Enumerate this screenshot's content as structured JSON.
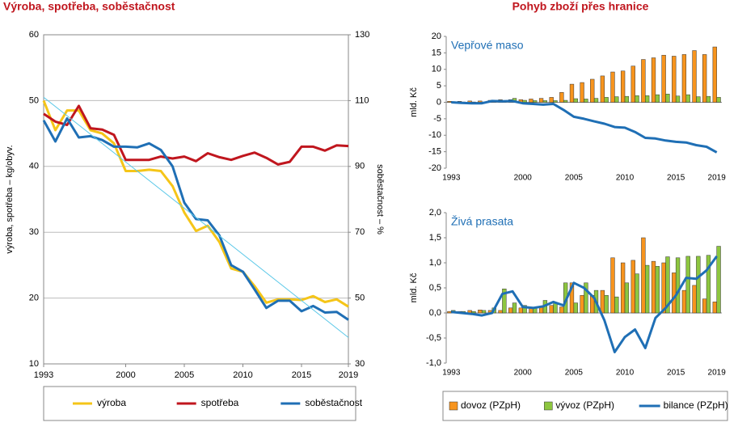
{
  "section_title": "Pohyb zboží přes hranice",
  "chart_data": [
    {
      "type": "line",
      "title": "Výroba, spotřeba, soběstačnost",
      "ylabel": "výroba, spotřeba – kg/obyv.",
      "y2label": "soběstačnost – %",
      "x": [
        1993,
        1994,
        1995,
        1996,
        1997,
        1998,
        1999,
        2000,
        2001,
        2002,
        2003,
        2004,
        2005,
        2006,
        2007,
        2008,
        2009,
        2010,
        2011,
        2012,
        2013,
        2014,
        2015,
        2016,
        2017,
        2018,
        2019
      ],
      "xlim": [
        1993,
        2019
      ],
      "xticks": [
        1993,
        2000,
        2005,
        2010,
        2015,
        2019
      ],
      "ylim": [
        10,
        60
      ],
      "yticks": [
        10,
        20,
        30,
        40,
        50,
        60
      ],
      "y2lim": [
        30,
        130
      ],
      "y2ticks": [
        30,
        50,
        70,
        90,
        110,
        130
      ],
      "grid": true,
      "legend": "bottom",
      "series": [
        {
          "name": "výroba",
          "color": "#f5c518",
          "values": [
            50,
            45.5,
            48.5,
            48.5,
            45.5,
            45,
            43.5,
            39.3,
            39.3,
            39.5,
            39.3,
            37,
            33,
            30.2,
            31,
            28.5,
            24.5,
            24,
            21.8,
            19.3,
            19.8,
            19.8,
            19.7,
            20.3,
            19.4,
            19.8,
            18.7
          ]
        },
        {
          "name": "spotřeba",
          "color": "#c0161e",
          "values": [
            48,
            46.8,
            46.3,
            49.2,
            45.8,
            45.6,
            44.8,
            41,
            41,
            41,
            41.5,
            41.2,
            41.5,
            40.8,
            42,
            41.4,
            41,
            41.6,
            42.1,
            41.3,
            40.3,
            40.7,
            43,
            43,
            42.4,
            43.2,
            43.1
          ]
        },
        {
          "name": "soběstačnost",
          "color": "#1f6fb5",
          "axis": "y2",
          "values": [
            104,
            97.6,
            104.6,
            98.8,
            99.2,
            98,
            96,
            96,
            95.8,
            97,
            95,
            90,
            79,
            74,
            73.6,
            69,
            60,
            58,
            52.6,
            47,
            49.2,
            49.2,
            46,
            47.6,
            45.6,
            45.8,
            43.4
          ]
        },
        {
          "color": "#5bc8e8",
          "x": [
            1993,
            2019
          ],
          "values": [
            50.5,
            14
          ]
        }
      ]
    },
    {
      "type": "bar",
      "title": "Vepřové maso",
      "ylabel": "mld. Kč",
      "categories": [
        "1993",
        null,
        null,
        null,
        null,
        null,
        null,
        "2000",
        null,
        null,
        null,
        null,
        "2005",
        null,
        null,
        null,
        null,
        "2010",
        null,
        null,
        null,
        null,
        "2015",
        null,
        null,
        null,
        "2019"
      ],
      "ylim": [
        -20,
        20
      ],
      "yticks": [
        -20,
        -15,
        -10,
        -5,
        0,
        5,
        10,
        15,
        20
      ],
      "grid": false,
      "series": [
        {
          "color": "#f7941d",
          "values": [
            0.3,
            0.3,
            0.4,
            0.4,
            0.6,
            0.8,
            0.8,
            0.8,
            1,
            1.2,
            1.5,
            3,
            5.5,
            6,
            7,
            8,
            9.2,
            9.5,
            11,
            13,
            13.5,
            14.3,
            14,
            14.5,
            15.7,
            14.5,
            16.8
          ]
        },
        {
          "color": "#8dc63f",
          "values": [
            0.2,
            0.1,
            0.1,
            0.1,
            0.2,
            0.5,
            1.2,
            0.6,
            0.5,
            0.5,
            0.5,
            0.6,
            1.1,
            1,
            1.2,
            1.5,
            1.7,
            1.8,
            2,
            2,
            2.3,
            2.5,
            1.9,
            2.3,
            1.7,
            1.8,
            1.5
          ]
        },
        {
          "color": "#1f6fb5",
          "type": "line",
          "values": [
            0,
            -0.2,
            -0.3,
            -0.3,
            0.4,
            0.3,
            0.4,
            -0.3,
            -0.5,
            -0.7,
            -0.5,
            -2.3,
            -4.4,
            -5,
            -5.8,
            -6.5,
            -7.5,
            -7.7,
            -9,
            -10.8,
            -11,
            -11.6,
            -12,
            -12.2,
            -13,
            -13.5,
            -15.2
          ]
        }
      ]
    },
    {
      "type": "bar",
      "title": "Živá prasata",
      "ylabel": "mld. Kč",
      "categories": [
        "1993",
        null,
        null,
        null,
        null,
        null,
        null,
        "2000",
        null,
        null,
        null,
        null,
        "2005",
        null,
        null,
        null,
        null,
        "2010",
        null,
        null,
        null,
        null,
        "2015",
        null,
        null,
        null,
        "2019"
      ],
      "ylim": [
        -1,
        2
      ],
      "yticks": [
        {
          "value": -1,
          "label": "-1,0"
        },
        {
          "value": -0.5,
          "label": "-0,5"
        },
        {
          "value": 0,
          "label": "0,0"
        },
        {
          "value": 0.5,
          "label": "0,5"
        },
        {
          "value": 1,
          "label": "1,0"
        },
        {
          "value": 1.5,
          "label": "1,5"
        },
        {
          "value": 2,
          "label": "2,0"
        }
      ],
      "grid": false,
      "legend": "bottom",
      "series": [
        {
          "name": "dovoz (PZpH)",
          "color": "#f7941d",
          "values": [
            0.03,
            0.03,
            0.05,
            0.06,
            0.05,
            0.05,
            0.1,
            0.1,
            0.1,
            0.12,
            0.15,
            0.12,
            0.6,
            0.35,
            0.35,
            0.45,
            1.1,
            1.0,
            1.05,
            1.5,
            1.03,
            1.0,
            0.8,
            0.45,
            0.55,
            0.28,
            0.22
          ]
        },
        {
          "name": "vývoz (PZpH)",
          "color": "#8dc63f",
          "values": [
            0.05,
            0.03,
            0.03,
            0.05,
            0.1,
            0.48,
            0.2,
            0.15,
            0.1,
            0.25,
            0.2,
            0.6,
            0.2,
            0.6,
            0.45,
            0.35,
            0.32,
            0.6,
            0.78,
            0.95,
            0.93,
            1.12,
            1.1,
            1.13,
            1.13,
            1.15,
            1.33
          ]
        },
        {
          "name": "bilance (PZpH)",
          "color": "#1f6fb5",
          "type": "line",
          "values": [
            0.02,
            0,
            -0.02,
            -0.05,
            0,
            0.38,
            0.43,
            0.12,
            0.1,
            0.13,
            0.22,
            0.15,
            0.6,
            0.5,
            0.3,
            -0.15,
            -0.78,
            -0.48,
            -0.33,
            -0.7,
            -0.1,
            0.1,
            0.35,
            0.7,
            0.68,
            0.85,
            1.13
          ]
        }
      ]
    }
  ]
}
